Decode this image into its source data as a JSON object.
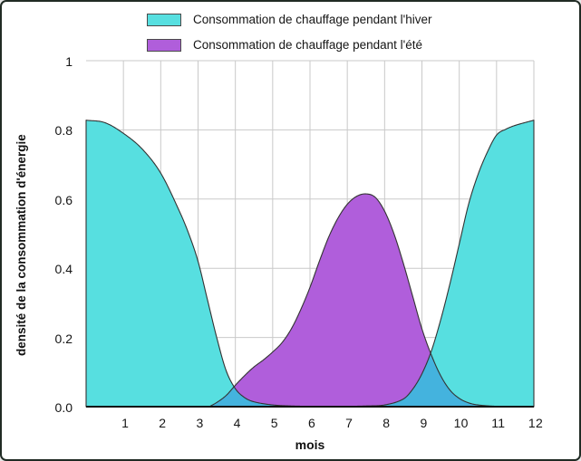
{
  "figure": {
    "background": "#ffffff",
    "border_color": "#202b24"
  },
  "legend": {
    "items": [
      {
        "label": "Consommation de chauffage pendant l'hiver",
        "color": "#57DFE0"
      },
      {
        "label": "Consommation de chauffage pendant l'été",
        "color": "#B05EDB"
      }
    ]
  },
  "axes": {
    "x": {
      "title": "mois",
      "ticks": [
        "1",
        "2",
        "3",
        "4",
        "5",
        "6",
        "7",
        "8",
        "9",
        "10",
        "11",
        "12"
      ]
    },
    "y": {
      "title": "densité de la consommation d'énergie",
      "ticks": [
        "0.0",
        "0.2",
        "0.4",
        "0.6",
        "0.8",
        "1"
      ]
    }
  },
  "chart_data": {
    "type": "area",
    "title": "",
    "xlabel": "mois",
    "ylabel": "densité de la consommation d'énergie",
    "xlim": [
      0,
      12
    ],
    "ylim": [
      0,
      1
    ],
    "x_ticks": [
      1,
      2,
      3,
      4,
      5,
      6,
      7,
      8,
      9,
      10,
      11,
      12
    ],
    "y_ticks": [
      0,
      0.2,
      0.4,
      0.6,
      0.8,
      1
    ],
    "grid": true,
    "grid_color": "#c9c9c9",
    "stroke_color": "#333333",
    "axis_color": "#111111",
    "overlap_color": "#44B3DE",
    "legend_position": "top-center",
    "series": [
      {
        "name": "Consommation de chauffage pendant l'hiver",
        "color": "#57DFE0",
        "points": [
          [
            0,
            0.828
          ],
          [
            0.5,
            0.821
          ],
          [
            1,
            0.79
          ],
          [
            1.5,
            0.745
          ],
          [
            2,
            0.675
          ],
          [
            2.5,
            0.565
          ],
          [
            2.75,
            0.5
          ],
          [
            3,
            0.42
          ],
          [
            3.25,
            0.31
          ],
          [
            3.5,
            0.2
          ],
          [
            3.75,
            0.105
          ],
          [
            4,
            0.052
          ],
          [
            4.25,
            0.026
          ],
          [
            4.5,
            0.014
          ],
          [
            5,
            0.005
          ],
          [
            5.5,
            0.002
          ],
          [
            6,
            0.001
          ],
          [
            6.5,
            0.001
          ],
          [
            7,
            0.001
          ],
          [
            7.5,
            0.002
          ],
          [
            8,
            0.005
          ],
          [
            8.5,
            0.022
          ],
          [
            8.75,
            0.05
          ],
          [
            9,
            0.095
          ],
          [
            9.25,
            0.16
          ],
          [
            9.5,
            0.25
          ],
          [
            9.75,
            0.355
          ],
          [
            10,
            0.47
          ],
          [
            10.25,
            0.585
          ],
          [
            10.5,
            0.67
          ],
          [
            10.75,
            0.735
          ],
          [
            11,
            0.785
          ],
          [
            11.25,
            0.802
          ],
          [
            11.5,
            0.813
          ],
          [
            12,
            0.828
          ]
        ]
      },
      {
        "name": "Consommation de chauffage pendant l'été",
        "color": "#B05EDB",
        "points": [
          [
            3.3,
            0
          ],
          [
            3.5,
            0.012
          ],
          [
            3.75,
            0.032
          ],
          [
            4,
            0.062
          ],
          [
            4.25,
            0.09
          ],
          [
            4.5,
            0.115
          ],
          [
            4.75,
            0.135
          ],
          [
            5,
            0.158
          ],
          [
            5.25,
            0.185
          ],
          [
            5.5,
            0.225
          ],
          [
            5.75,
            0.28
          ],
          [
            6,
            0.345
          ],
          [
            6.25,
            0.42
          ],
          [
            6.5,
            0.49
          ],
          [
            6.75,
            0.545
          ],
          [
            7,
            0.585
          ],
          [
            7.25,
            0.608
          ],
          [
            7.5,
            0.615
          ],
          [
            7.75,
            0.605
          ],
          [
            8,
            0.565
          ],
          [
            8.25,
            0.5
          ],
          [
            8.5,
            0.415
          ],
          [
            8.75,
            0.32
          ],
          [
            9,
            0.225
          ],
          [
            9.25,
            0.15
          ],
          [
            9.5,
            0.09
          ],
          [
            9.75,
            0.048
          ],
          [
            10,
            0.024
          ],
          [
            10.25,
            0.011
          ],
          [
            10.5,
            0.005
          ],
          [
            11,
            0.001
          ],
          [
            11.5,
            0
          ]
        ]
      }
    ]
  }
}
